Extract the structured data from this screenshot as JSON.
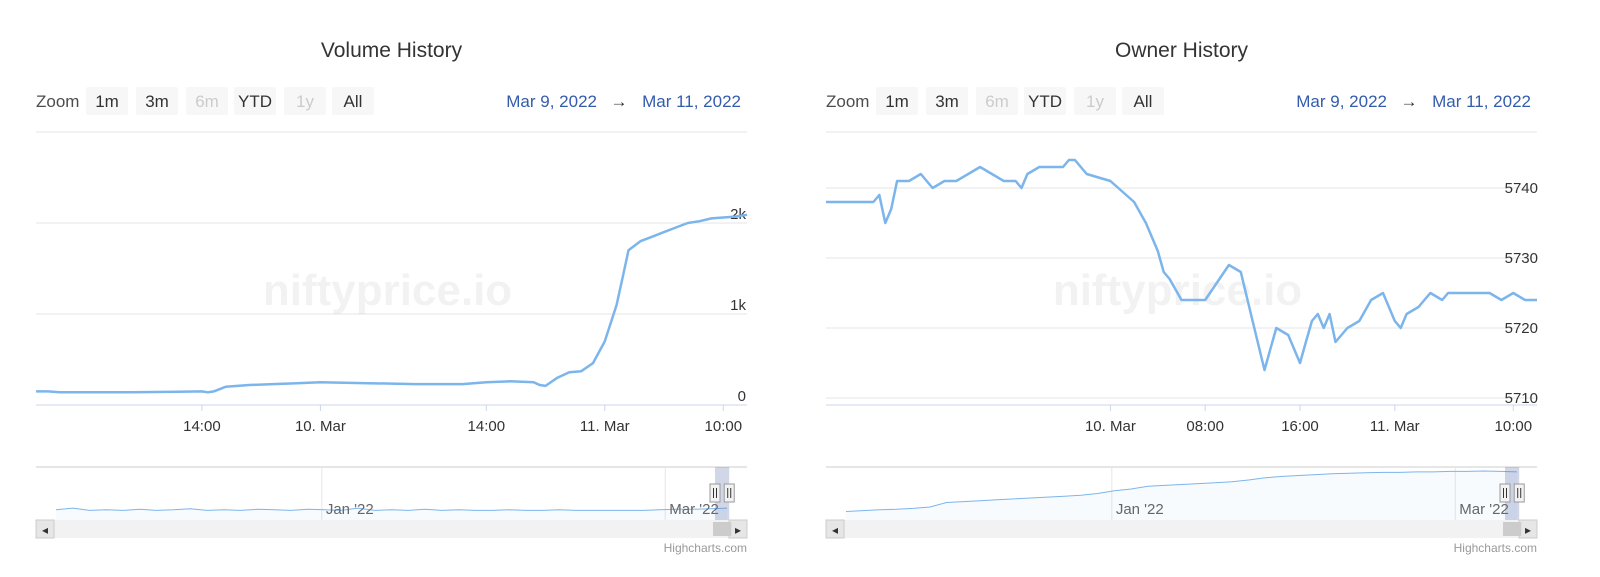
{
  "charts": [
    {
      "title": "Volume History",
      "zoom_label": "Zoom",
      "zoom_buttons": [
        {
          "label": "1m",
          "enabled": true
        },
        {
          "label": "3m",
          "enabled": true
        },
        {
          "label": "6m",
          "enabled": false
        },
        {
          "label": "YTD",
          "enabled": true
        },
        {
          "label": "1y",
          "enabled": false
        },
        {
          "label": "All",
          "enabled": true
        }
      ],
      "date_from": "Mar 9, 2022",
      "arrow": "→",
      "date_to": "Mar 11, 2022",
      "watermark": "niftyprice.io",
      "credits": "Highcharts.com",
      "navigator_labels": [
        "Jan '22",
        "Mar '22"
      ],
      "scroll_left_glyph": "◂",
      "scroll_right_glyph": "▸"
    },
    {
      "title": "Owner History",
      "zoom_label": "Zoom",
      "zoom_buttons": [
        {
          "label": "1m",
          "enabled": true
        },
        {
          "label": "3m",
          "enabled": true
        },
        {
          "label": "6m",
          "enabled": false
        },
        {
          "label": "YTD",
          "enabled": true
        },
        {
          "label": "1y",
          "enabled": false
        },
        {
          "label": "All",
          "enabled": true
        }
      ],
      "date_from": "Mar 9, 2022",
      "arrow": "→",
      "date_to": "Mar 11, 2022",
      "watermark": "niftyprice.io",
      "credits": "Highcharts.com",
      "navigator_labels": [
        "Jan '22",
        "Mar '22"
      ],
      "scroll_left_glyph": "◂",
      "scroll_right_glyph": "▸"
    }
  ],
  "chart_data": [
    {
      "type": "line",
      "title": "Volume History",
      "x_range_hours": [
        0,
        60
      ],
      "x_ticks": [
        {
          "label": "14:00",
          "hour": 14
        },
        {
          "label": "10. Mar",
          "hour": 24
        },
        {
          "label": "14:00",
          "hour": 38
        },
        {
          "label": "11. Mar",
          "hour": 48
        },
        {
          "label": "10:00",
          "hour": 58
        }
      ],
      "y_ticks": [
        {
          "label": "0",
          "value": 0
        },
        {
          "label": "1k",
          "value": 1000
        },
        {
          "label": "2k",
          "value": 2000
        }
      ],
      "ylim": [
        0,
        3000
      ],
      "series": [
        {
          "x": [
            0,
            1,
            2,
            4,
            8,
            12,
            14,
            14.5,
            15,
            16,
            18,
            20,
            22,
            24,
            26,
            28,
            30,
            32,
            34,
            36,
            38,
            40,
            42,
            42.5,
            43,
            44,
            45,
            46,
            47,
            48,
            48.5,
            49,
            49.5,
            50,
            51,
            52,
            53,
            54,
            55,
            56,
            57,
            58,
            59,
            59.5,
            60
          ],
          "y": [
            150,
            150,
            140,
            140,
            140,
            145,
            150,
            140,
            150,
            200,
            220,
            230,
            240,
            250,
            245,
            240,
            235,
            230,
            230,
            230,
            250,
            260,
            250,
            220,
            210,
            300,
            360,
            370,
            460,
            700,
            900,
            1100,
            1400,
            1700,
            1800,
            1850,
            1900,
            1950,
            2000,
            2020,
            2050,
            2060,
            2070,
            2080,
            2090
          ]
        }
      ],
      "navigator": {
        "y": [
          0.55,
          0.7,
          0.5,
          0.55,
          0.5,
          0.6,
          0.5,
          0.55,
          0.65,
          0.5,
          0.55,
          0.5,
          0.6,
          0.55,
          0.5,
          0.6,
          0.55,
          0.5,
          0.7,
          0.5,
          0.55,
          0.5,
          0.6,
          0.5,
          0.55,
          0.5,
          0.5,
          0.55,
          0.5,
          0.5,
          0.55,
          0.5,
          0.5,
          0.5,
          0.5,
          0.5,
          0.55,
          0.6,
          0.6,
          0.65,
          0.7
        ],
        "window_start": 0.955,
        "window_end": 0.975
      }
    },
    {
      "type": "line",
      "title": "Owner History",
      "x_range_hours": [
        0,
        60
      ],
      "x_ticks": [
        {
          "label": "10. Mar",
          "hour": 24
        },
        {
          "label": "08:00",
          "hour": 32
        },
        {
          "label": "16:00",
          "hour": 40
        },
        {
          "label": "11. Mar",
          "hour": 48
        },
        {
          "label": "10:00",
          "hour": 58
        }
      ],
      "y_ticks": [
        {
          "label": "5710",
          "value": 5710
        },
        {
          "label": "5720",
          "value": 5720
        },
        {
          "label": "5730",
          "value": 5730
        },
        {
          "label": "5740",
          "value": 5740
        }
      ],
      "ylim": [
        5709,
        5748
      ],
      "series": [
        {
          "x": [
            0,
            4,
            4.5,
            5,
            5.5,
            6,
            7,
            8,
            9,
            10,
            11,
            12,
            13,
            15,
            16,
            16.5,
            17,
            18,
            20,
            20.5,
            21,
            22,
            24,
            26,
            27,
            28,
            28.5,
            29,
            30,
            31,
            32,
            34,
            35,
            36,
            37,
            38,
            39,
            40,
            40.5,
            41,
            41.5,
            42,
            42.5,
            43,
            44,
            45,
            46,
            47,
            48,
            48.5,
            49,
            50,
            50.5,
            51,
            52,
            52.5,
            53,
            54,
            55,
            56,
            57,
            58,
            59,
            60
          ],
          "y": [
            5738,
            5738,
            5739,
            5735,
            5737,
            5741,
            5741,
            5742,
            5740,
            5741,
            5741,
            5742,
            5743,
            5741,
            5741,
            5740,
            5742,
            5743,
            5743,
            5744,
            5744,
            5742,
            5741,
            5738,
            5735,
            5731,
            5728,
            5727,
            5724,
            5724,
            5724,
            5729,
            5728,
            5721,
            5714,
            5720,
            5719,
            5715,
            5718,
            5721,
            5722,
            5720,
            5722,
            5718,
            5720,
            5721,
            5724,
            5725,
            5721,
            5720,
            5722,
            5723,
            5724,
            5725,
            5724,
            5725,
            5725,
            5725,
            5725,
            5725,
            5724,
            5725,
            5724,
            5724
          ],
          "step_hint": "stepped"
        }
      ],
      "navigator": {
        "y": [
          0.1,
          0.12,
          0.14,
          0.15,
          0.17,
          0.2,
          0.3,
          0.32,
          0.34,
          0.36,
          0.38,
          0.4,
          0.42,
          0.44,
          0.46,
          0.5,
          0.56,
          0.6,
          0.66,
          0.68,
          0.7,
          0.72,
          0.74,
          0.76,
          0.8,
          0.85,
          0.88,
          0.9,
          0.92,
          0.94,
          0.95,
          0.96,
          0.97,
          0.97,
          0.98,
          0.98,
          0.99,
          0.99,
          1.0,
          0.99,
          0.98
        ],
        "window_start": 0.955,
        "window_end": 0.975
      }
    }
  ]
}
